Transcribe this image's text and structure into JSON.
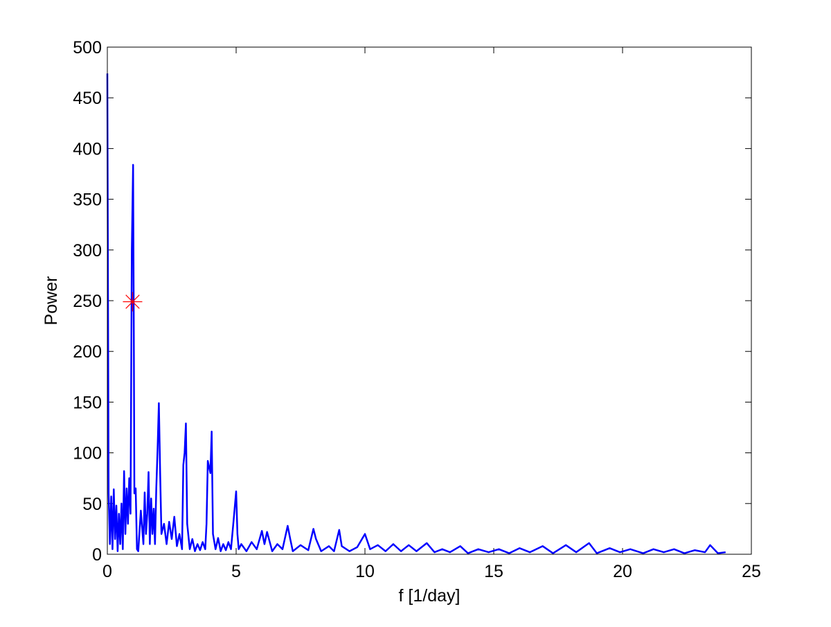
{
  "chart_data": {
    "type": "line",
    "xlabel": "f [1/day]",
    "ylabel": "Power",
    "xlim": [
      0,
      25
    ],
    "ylim": [
      0,
      500
    ],
    "xticks": [
      0,
      5,
      10,
      15,
      20,
      25
    ],
    "yticks": [
      0,
      50,
      100,
      150,
      200,
      250,
      300,
      350,
      400,
      450,
      500
    ],
    "series": [
      {
        "color": "#0000ff",
        "x": [
          0,
          0.05,
          0.1,
          0.15,
          0.2,
          0.25,
          0.3,
          0.35,
          0.4,
          0.45,
          0.5,
          0.55,
          0.6,
          0.65,
          0.7,
          0.75,
          0.8,
          0.85,
          0.9,
          0.95,
          1.0,
          1.03,
          1.05,
          1.1,
          1.15,
          1.2,
          1.3,
          1.4,
          1.45,
          1.5,
          1.55,
          1.6,
          1.65,
          1.7,
          1.75,
          1.8,
          1.85,
          1.9,
          1.95,
          2.0,
          2.05,
          2.1,
          2.2,
          2.3,
          2.4,
          2.5,
          2.6,
          2.7,
          2.8,
          2.9,
          2.95,
          3.0,
          3.05,
          3.1,
          3.2,
          3.3,
          3.4,
          3.5,
          3.6,
          3.7,
          3.8,
          3.85,
          3.9,
          4.0,
          4.05,
          4.1,
          4.2,
          4.3,
          4.4,
          4.5,
          4.6,
          4.7,
          4.8,
          4.9,
          5.0,
          5.05,
          5.1,
          5.2,
          5.4,
          5.6,
          5.8,
          6.0,
          6.1,
          6.2,
          6.4,
          6.6,
          6.8,
          7.0,
          7.1,
          7.2,
          7.5,
          7.8,
          8.0,
          8.1,
          8.3,
          8.6,
          8.8,
          9.0,
          9.1,
          9.4,
          9.7,
          10.0,
          10.2,
          10.5,
          10.8,
          11.1,
          11.4,
          11.7,
          12.0,
          12.4,
          12.7,
          13.0,
          13.3,
          13.7,
          14.0,
          14.4,
          14.8,
          15.2,
          15.6,
          16.0,
          16.4,
          16.9,
          17.3,
          17.8,
          18.2,
          18.7,
          19.0,
          19.5,
          19.9,
          20.3,
          20.8,
          21.2,
          21.6,
          22.0,
          22.4,
          22.8,
          23.2,
          23.4,
          23.7,
          24.0
        ],
        "values": [
          474,
          60,
          10,
          57,
          5,
          64,
          15,
          48,
          3,
          40,
          10,
          50,
          5,
          82,
          20,
          65,
          30,
          75,
          40,
          300,
          384,
          200,
          60,
          65,
          5,
          3,
          43,
          10,
          61,
          20,
          40,
          81,
          10,
          55,
          20,
          45,
          10,
          65,
          103,
          149,
          80,
          20,
          30,
          10,
          32,
          15,
          37,
          8,
          20,
          5,
          88,
          100,
          129,
          30,
          5,
          15,
          3,
          10,
          4,
          12,
          5,
          30,
          92,
          80,
          121,
          20,
          5,
          16,
          3,
          10,
          4,
          12,
          5,
          33,
          62,
          20,
          5,
          10,
          3,
          12,
          5,
          23,
          10,
          22,
          3,
          10,
          5,
          28,
          15,
          3,
          9,
          4,
          25,
          15,
          3,
          8,
          3,
          24,
          8,
          3,
          7,
          20,
          5,
          9,
          3,
          10,
          3,
          9,
          3,
          11,
          2,
          5,
          2,
          8,
          1,
          5,
          2,
          5,
          1,
          6,
          2,
          8,
          1,
          9,
          2,
          11,
          1,
          6,
          2,
          5,
          1,
          5,
          2,
          5,
          1,
          4,
          2,
          9,
          1,
          2
        ]
      },
      {
        "color": "#ff0000",
        "marker": "*",
        "x": [
          0.98
        ],
        "values": [
          249
        ]
      }
    ]
  }
}
